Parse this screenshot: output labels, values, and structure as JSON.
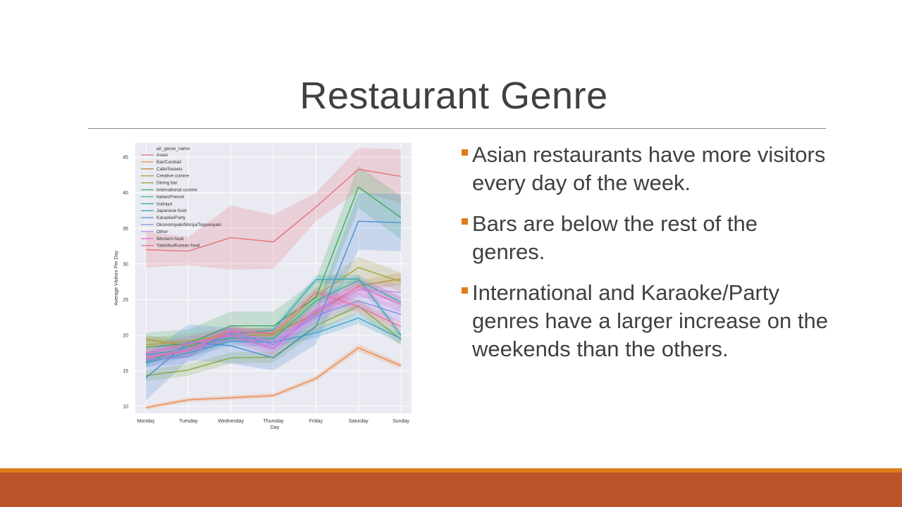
{
  "slide": {
    "title": "Restaurant Genre",
    "bullets": [
      "Asian restaurants have more visitors every day of the week.",
      "Bars are below the rest of the genres.",
      "International and Karaoke/Party genres have a larger increase on the weekends than the others."
    ]
  },
  "colors": {
    "accent_orange": "#dc7c1a",
    "footer_rust": "#bc5429",
    "title_text": "#404040",
    "chart_bg": "#eaeaf2"
  },
  "chart_data": {
    "type": "line",
    "xlabel": "Day",
    "ylabel": "Average Visitors Per Day",
    "ylim": [
      9,
      47
    ],
    "yticks": [
      10,
      15,
      20,
      25,
      30,
      35,
      40,
      45
    ],
    "categories": [
      "Monday",
      "Tuesday",
      "Wednesday",
      "Thursday",
      "Friday",
      "Saturday",
      "Sunday"
    ],
    "legend_title": "air_genre_name",
    "legend_position": "top-left",
    "grid": true,
    "series": [
      {
        "name": "Asian",
        "color": "#e8737b",
        "values": [
          32.0,
          31.8,
          33.7,
          33.1,
          38.0,
          43.3,
          42.3
        ],
        "ci": [
          2.5,
          2.0,
          4.5,
          3.8,
          2.0,
          3.0,
          3.8
        ]
      },
      {
        "name": "Bar/Cocktail",
        "color": "#ec8a49",
        "values": [
          9.8,
          10.9,
          11.2,
          11.5,
          13.9,
          18.2,
          15.7
        ],
        "ci": [
          0.3,
          0.3,
          0.3,
          0.3,
          0.4,
          0.5,
          0.4
        ]
      },
      {
        "name": "Cafe/Sweets",
        "color": "#bd8c3c",
        "values": [
          19.4,
          18.5,
          20.5,
          20.2,
          23.0,
          26.9,
          27.9
        ],
        "ci": [
          0.6,
          0.6,
          0.6,
          0.6,
          0.7,
          0.8,
          0.8
        ]
      },
      {
        "name": "Creative cuisine",
        "color": "#a6a43a",
        "values": [
          18.6,
          19.2,
          20.0,
          20.0,
          25.5,
          29.5,
          27.5
        ],
        "ci": [
          1.0,
          1.0,
          1.0,
          1.0,
          1.2,
          1.5,
          1.3
        ]
      },
      {
        "name": "Dining bar",
        "color": "#85aa3c",
        "values": [
          14.3,
          15.1,
          16.8,
          16.9,
          21.3,
          24.1,
          19.4
        ],
        "ci": [
          0.8,
          0.8,
          0.8,
          0.8,
          0.9,
          1.0,
          0.9
        ]
      },
      {
        "name": "International cuisine",
        "color": "#3fab5c",
        "values": [
          18.3,
          18.8,
          21.3,
          21.3,
          25.3,
          40.8,
          36.5
        ],
        "ci": [
          2.0,
          2.0,
          2.0,
          2.0,
          2.5,
          3.0,
          3.0
        ]
      },
      {
        "name": "Italian/French",
        "color": "#3aaf98",
        "values": [
          16.2,
          18.4,
          19.6,
          19.5,
          24.8,
          27.7,
          24.6
        ],
        "ci": [
          0.5,
          0.5,
          0.5,
          0.5,
          0.6,
          0.7,
          0.7
        ]
      },
      {
        "name": "Izakaya",
        "color": "#3ba8b0",
        "values": [
          17.2,
          18.0,
          20.1,
          20.7,
          27.8,
          27.9,
          20.0
        ],
        "ci": [
          0.5,
          0.5,
          0.5,
          0.5,
          0.6,
          0.6,
          0.6
        ]
      },
      {
        "name": "Japanese food",
        "color": "#3da3c9",
        "values": [
          16.1,
          17.5,
          19.1,
          19.0,
          20.3,
          22.4,
          19.5
        ],
        "ci": [
          0.6,
          0.6,
          0.6,
          0.6,
          0.7,
          0.8,
          0.7
        ]
      },
      {
        "name": "Karaoke/Party",
        "color": "#4a8fd6",
        "values": [
          14.0,
          19.0,
          18.5,
          16.8,
          21.2,
          36.0,
          35.8
        ],
        "ci": [
          3.2,
          2.5,
          2.5,
          1.8,
          2.5,
          4.0,
          4.0
        ]
      },
      {
        "name": "Okonomiyaki/Monja/Teppanyaki",
        "color": "#8c8ce6",
        "values": [
          16.5,
          17.0,
          20.3,
          18.7,
          22.7,
          24.8,
          22.9
        ],
        "ci": [
          1.0,
          1.0,
          1.0,
          1.0,
          1.1,
          1.2,
          1.1
        ]
      },
      {
        "name": "Other",
        "color": "#c385e0",
        "values": [
          17.0,
          18.0,
          20.5,
          19.0,
          23.2,
          26.4,
          26.0
        ],
        "ci": [
          1.0,
          1.0,
          1.0,
          1.0,
          1.1,
          1.2,
          1.2
        ]
      },
      {
        "name": "Western food",
        "color": "#e26bd5",
        "values": [
          17.4,
          18.8,
          20.0,
          18.1,
          23.4,
          26.8,
          24.3
        ],
        "ci": [
          1.0,
          1.0,
          1.0,
          1.0,
          1.1,
          1.2,
          1.1
        ]
      },
      {
        "name": "Yakiniku/Korean food",
        "color": "#e66fa6",
        "values": [
          16.8,
          17.8,
          20.5,
          20.3,
          26.0,
          24.0,
          21.2
        ],
        "ci": [
          0.6,
          0.6,
          0.6,
          0.6,
          0.7,
          0.8,
          0.7
        ]
      }
    ]
  }
}
